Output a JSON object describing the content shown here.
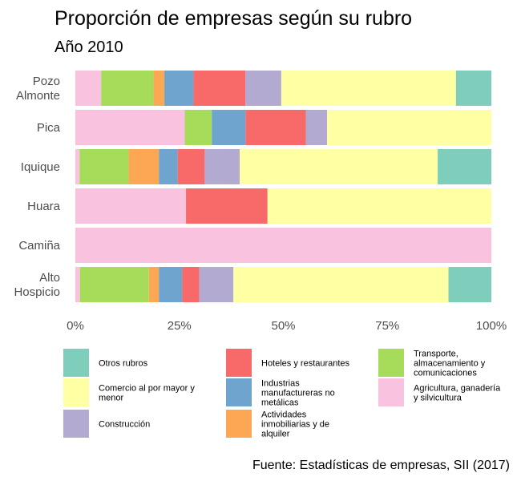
{
  "chart_data": {
    "type": "bar",
    "orientation": "horizontal",
    "stacked": "percent",
    "title": "Proporción de empresas según su rubro",
    "subtitle": "Año 2010",
    "caption": "Fuente: Estadísticas de empresas, SII (2017)",
    "categories": [
      [
        "Pozo",
        "Almonte"
      ],
      [
        "Pica"
      ],
      [
        "Iquique"
      ],
      [
        "Huara"
      ],
      [
        "Camiña"
      ],
      [
        "Alto",
        "Hospicio"
      ]
    ],
    "xlim": [
      0,
      100
    ],
    "xticks": [
      "0%",
      "25%",
      "50%",
      "75%",
      "100%"
    ],
    "grid": false,
    "legend_position": "bottom",
    "series": [
      {
        "name": "Agricultura, ganadería y silvicultura",
        "color": "#f9c3e0",
        "values": [
          6.2,
          26.3,
          1.0,
          26.6,
          100.0,
          1.1
        ]
      },
      {
        "name": "Transporte, almacenamiento y comunicaciones",
        "color": "#a7dc5b",
        "values": [
          12.6,
          6.5,
          11.8,
          0.0,
          0.0,
          16.6
        ]
      },
      {
        "name": "Actividades inmobiliarias y de alquiler",
        "color": "#fba753",
        "values": [
          2.6,
          0.0,
          7.3,
          0.0,
          0.0,
          2.4
        ]
      },
      {
        "name": "Industrias manufactureras no metálicas",
        "color": "#6ea4cd",
        "values": [
          7.0,
          8.1,
          4.5,
          0.0,
          0.0,
          5.6
        ]
      },
      {
        "name": "Hoteles y restaurantes",
        "color": "#f8696a",
        "values": [
          12.5,
          14.5,
          6.5,
          19.6,
          0.0,
          4.1
        ]
      },
      {
        "name": "Construcción",
        "color": "#b3aad2",
        "values": [
          8.6,
          5.1,
          8.4,
          0.0,
          0.0,
          8.2
        ]
      },
      {
        "name": "Comercio al por mayor y menor",
        "color": "#ffffa4",
        "values": [
          42.0,
          39.5,
          47.6,
          53.8,
          0.0,
          51.7
        ]
      },
      {
        "name": "Otros rubros",
        "color": "#7fcdbb",
        "values": [
          8.5,
          0.0,
          12.9,
          0.0,
          0.0,
          10.3
        ]
      }
    ],
    "legend_entries": [
      {
        "lines": [
          "Otros rubros"
        ],
        "color": "#7fcdbb"
      },
      {
        "lines": [
          "Comercio al por mayor y",
          "menor"
        ],
        "color": "#ffffa4"
      },
      {
        "lines": [
          "Construcción"
        ],
        "color": "#b3aad2"
      },
      {
        "lines": [
          "Hoteles y restaurantes"
        ],
        "color": "#f8696a"
      },
      {
        "lines": [
          "Industrias",
          "manufactureras no",
          "metálicas"
        ],
        "color": "#6ea4cd"
      },
      {
        "lines": [
          "Actividades",
          "inmobiliarias y de",
          "alquiler"
        ],
        "color": "#fba753"
      },
      {
        "lines": [
          "Transporte,",
          "almacenamiento y",
          "comunicaciones"
        ],
        "color": "#a7dc5b"
      },
      {
        "lines": [
          "Agricultura, ganadería",
          "y silvicultura"
        ],
        "color": "#f9c3e0"
      }
    ]
  }
}
